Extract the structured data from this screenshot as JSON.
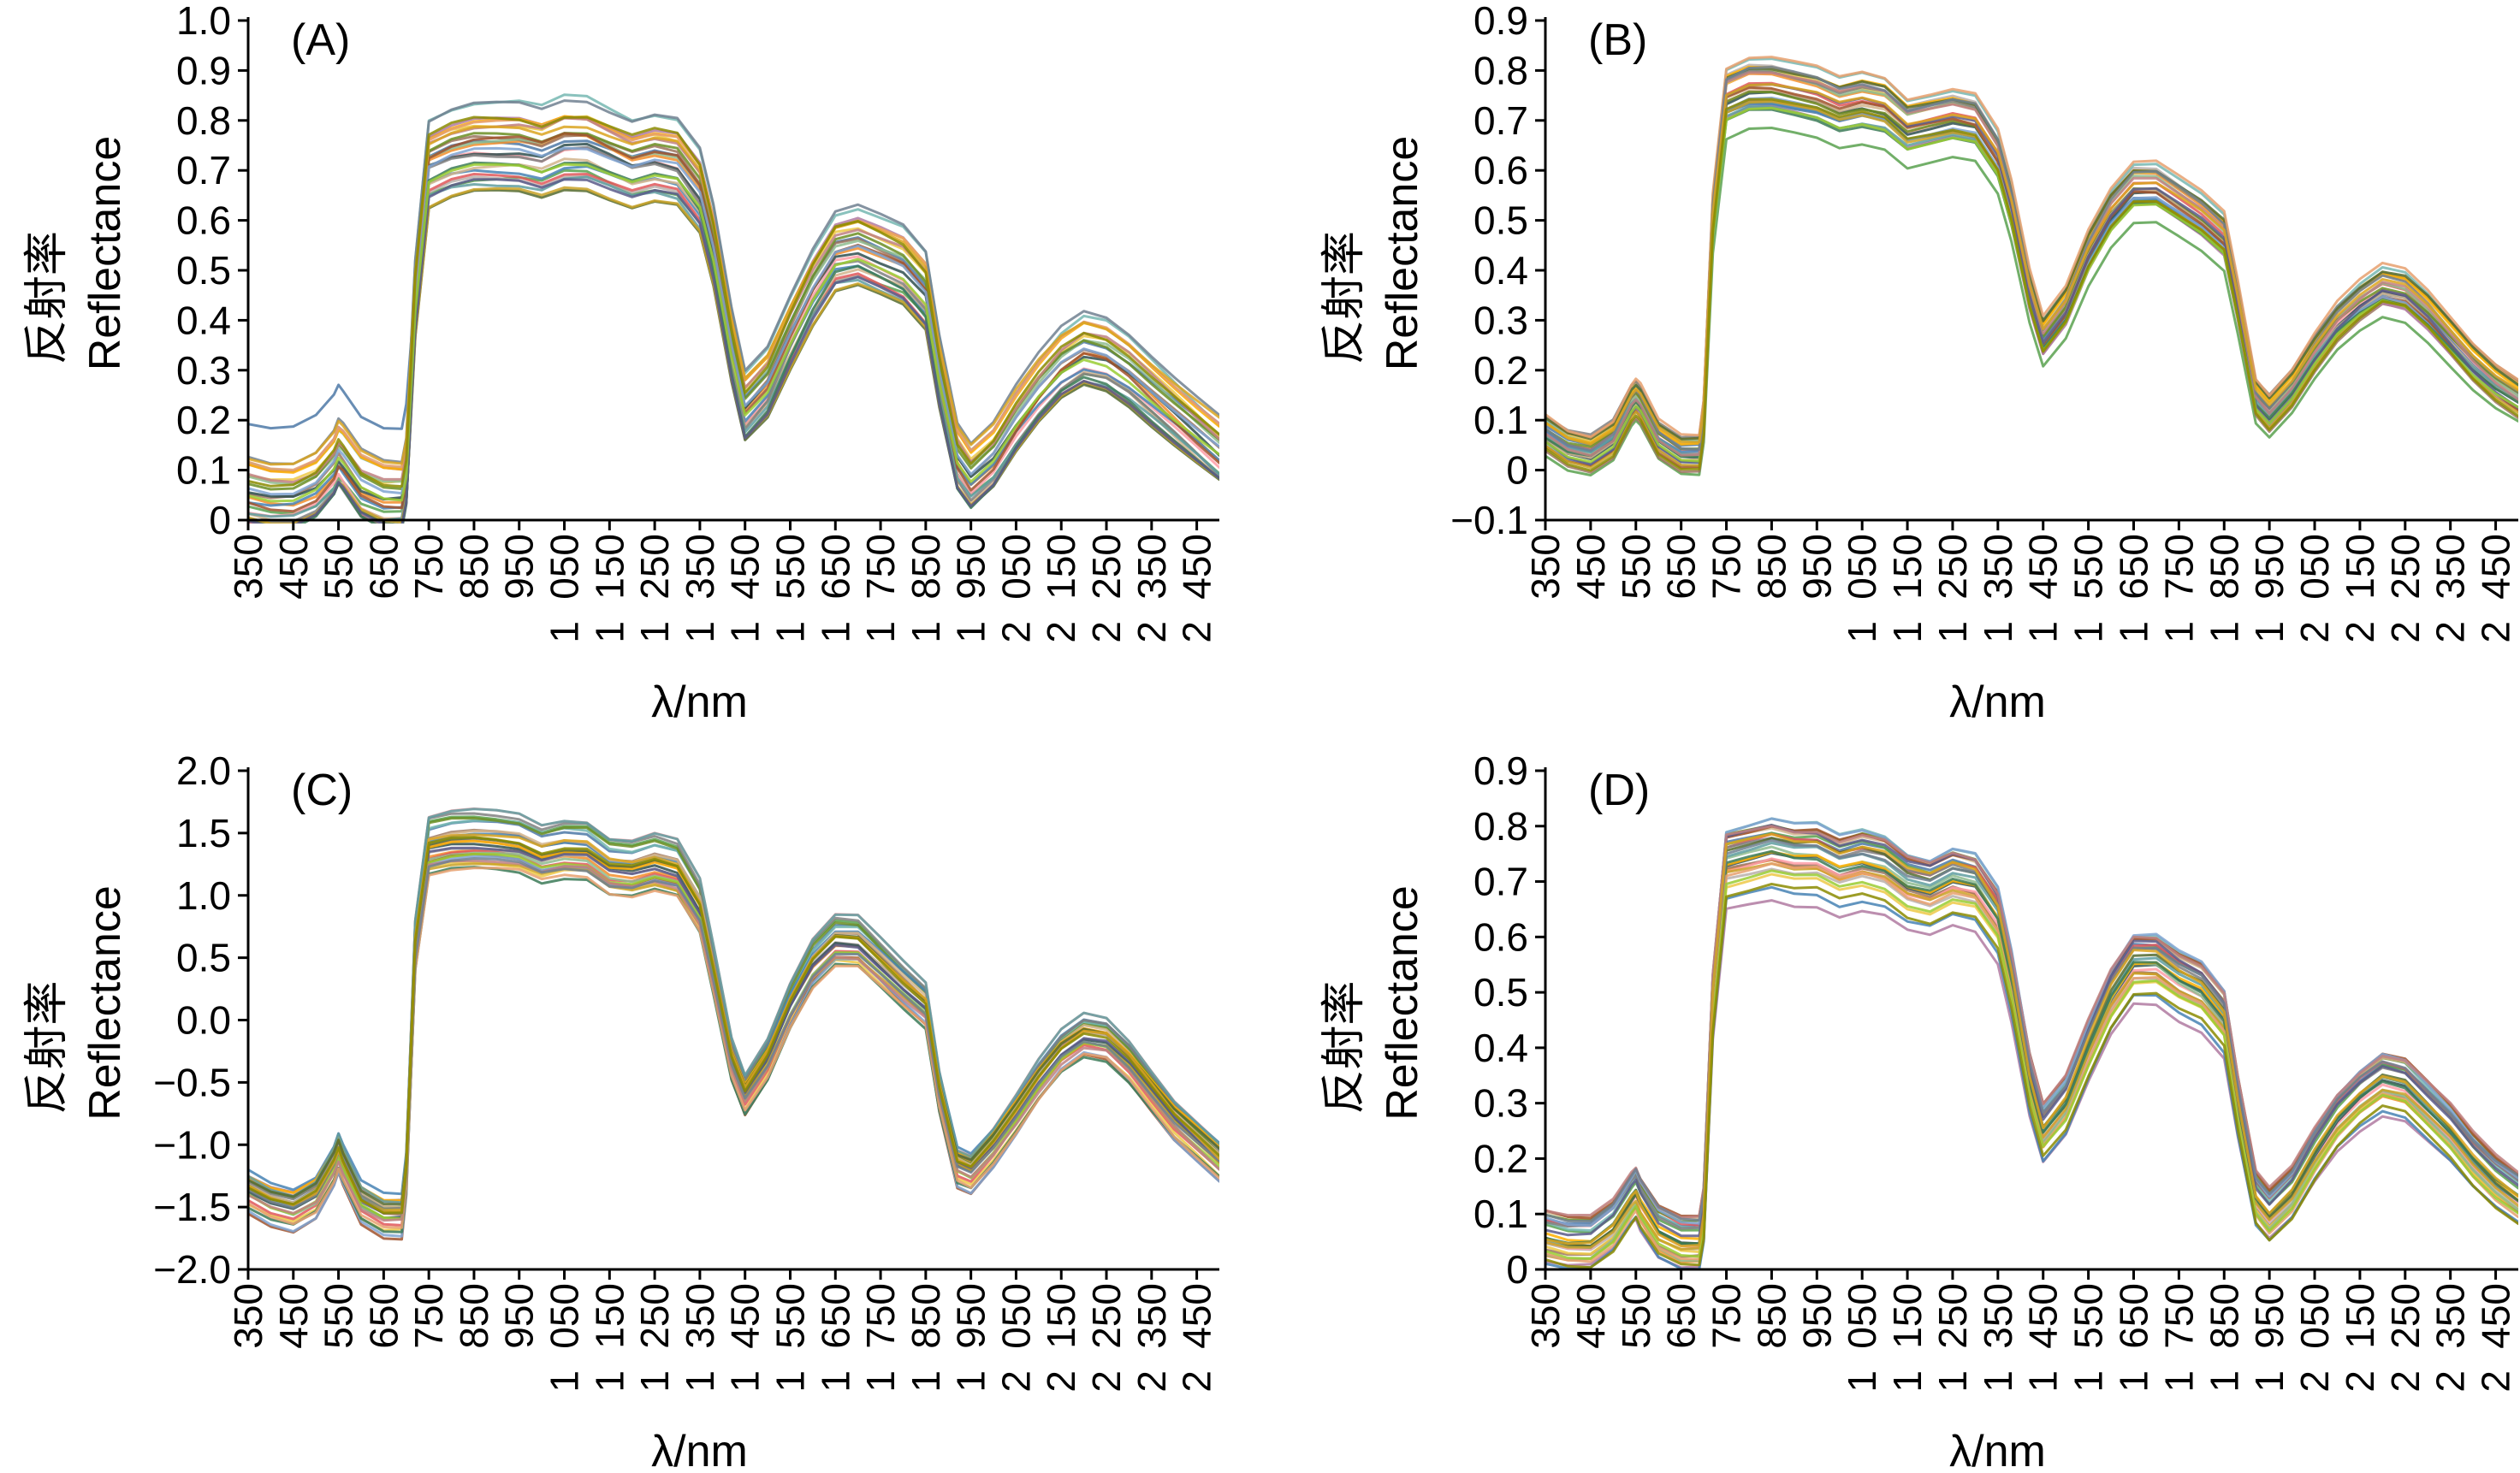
{
  "figure": {
    "ylabel_cn": "反射率",
    "ylabel_en": "Reflectance",
    "xlabel": "λ/nm"
  },
  "chart_data": [
    {
      "type": "line",
      "panel_label": "(A)",
      "xlabel": "λ/nm",
      "ylabel": "反射率 Reflectance",
      "xlim": [
        350,
        2500
      ],
      "ylim": [
        0,
        1.0
      ],
      "y_ticks": [
        "0",
        "0.1",
        "0.2",
        "0.3",
        "0.4",
        "0.5",
        "0.6",
        "0.7",
        "0.8",
        "0.9",
        "1.0"
      ],
      "x_ticks_top": [
        "350",
        "450",
        "550",
        "650",
        "750",
        "850",
        "950",
        "050",
        "150",
        "250",
        "350",
        "450",
        "550",
        "650",
        "750",
        "850",
        "950",
        "050",
        "150",
        "250",
        "350",
        "450"
      ],
      "x_ticks_bottom": [
        "",
        "",
        "",
        "",
        "",
        "",
        "",
        "1",
        "1",
        "1",
        "1",
        "1",
        "1",
        "1",
        "1",
        "1",
        "1",
        "2",
        "2",
        "2",
        "2",
        "2"
      ],
      "x": [
        350,
        400,
        450,
        500,
        540,
        550,
        560,
        600,
        650,
        690,
        700,
        720,
        750,
        800,
        850,
        900,
        950,
        1000,
        1050,
        1100,
        1150,
        1200,
        1250,
        1300,
        1350,
        1380,
        1420,
        1450,
        1500,
        1550,
        1600,
        1650,
        1700,
        1750,
        1800,
        1850,
        1880,
        1920,
        1950,
        2000,
        2050,
        2100,
        2150,
        2200,
        2250,
        2300,
        2350,
        2400,
        2450,
        2500
      ],
      "mean": [
        0.06,
        0.05,
        0.05,
        0.07,
        0.11,
        0.13,
        0.12,
        0.07,
        0.05,
        0.05,
        0.1,
        0.45,
        0.72,
        0.74,
        0.75,
        0.75,
        0.75,
        0.74,
        0.76,
        0.76,
        0.74,
        0.72,
        0.73,
        0.72,
        0.66,
        0.55,
        0.35,
        0.23,
        0.28,
        0.38,
        0.47,
        0.54,
        0.55,
        0.53,
        0.51,
        0.46,
        0.3,
        0.13,
        0.09,
        0.13,
        0.2,
        0.26,
        0.31,
        0.34,
        0.33,
        0.3,
        0.26,
        0.22,
        0.18,
        0.14
      ],
      "spread": 0.07,
      "series_count": 30,
      "outlier": {
        "offset": 0.11,
        "from_x": 350,
        "to_x": 700
      }
    },
    {
      "type": "line",
      "panel_label": "(B)",
      "xlabel": "λ/nm",
      "ylabel": "反射率 Reflectance",
      "xlim": [
        350,
        2500
      ],
      "ylim": [
        -0.1,
        0.9
      ],
      "y_ticks": [
        "−0.1",
        "0",
        "0.1",
        "0.2",
        "0.3",
        "0.4",
        "0.5",
        "0.6",
        "0.7",
        "0.8",
        "0.9"
      ],
      "x_ticks_top": [
        "350",
        "450",
        "550",
        "650",
        "750",
        "850",
        "950",
        "050",
        "150",
        "250",
        "350",
        "450",
        "550",
        "650",
        "750",
        "850",
        "950",
        "050",
        "150",
        "250",
        "350",
        "450"
      ],
      "x_ticks_bottom": [
        "",
        "",
        "",
        "",
        "",
        "",
        "",
        "1",
        "1",
        "1",
        "1",
        "1",
        "1",
        "1",
        "1",
        "1",
        "1",
        "2",
        "2",
        "2",
        "2",
        "2"
      ],
      "x": [
        350,
        400,
        450,
        500,
        540,
        550,
        560,
        600,
        650,
        690,
        700,
        720,
        750,
        800,
        850,
        900,
        950,
        1000,
        1050,
        1100,
        1150,
        1200,
        1250,
        1300,
        1350,
        1380,
        1420,
        1450,
        1500,
        1550,
        1600,
        1650,
        1700,
        1750,
        1800,
        1850,
        1880,
        1920,
        1950,
        2000,
        2050,
        2100,
        2150,
        2200,
        2250,
        2300,
        2350,
        2400,
        2450,
        2500
      ],
      "mean": [
        0.07,
        0.04,
        0.03,
        0.06,
        0.13,
        0.14,
        0.13,
        0.06,
        0.03,
        0.03,
        0.1,
        0.5,
        0.74,
        0.76,
        0.76,
        0.75,
        0.74,
        0.72,
        0.73,
        0.72,
        0.68,
        0.69,
        0.7,
        0.69,
        0.62,
        0.52,
        0.35,
        0.26,
        0.32,
        0.43,
        0.51,
        0.56,
        0.56,
        0.53,
        0.5,
        0.46,
        0.33,
        0.14,
        0.11,
        0.16,
        0.23,
        0.29,
        0.33,
        0.36,
        0.35,
        0.31,
        0.26,
        0.21,
        0.17,
        0.14
      ],
      "spread": 0.04,
      "series_count": 30
    },
    {
      "type": "line",
      "panel_label": "(C)",
      "xlabel": "λ/nm",
      "ylabel": "反射率 Reflectance",
      "xlim": [
        350,
        2500
      ],
      "ylim": [
        -2.0,
        2.0
      ],
      "y_ticks": [
        "−2.0",
        "−1.5",
        "−1.0",
        "−0.5",
        "0.0",
        "0.5",
        "1.0",
        "1.5",
        "2.0"
      ],
      "x_ticks_top": [
        "350",
        "450",
        "550",
        "650",
        "750",
        "850",
        "950",
        "050",
        "150",
        "250",
        "350",
        "450",
        "550",
        "650",
        "750",
        "850",
        "950",
        "050",
        "150",
        "250",
        "350",
        "450"
      ],
      "x_ticks_bottom": [
        "",
        "",
        "",
        "",
        "",
        "",
        "",
        "1",
        "1",
        "1",
        "1",
        "1",
        "1",
        "1",
        "1",
        "1",
        "1",
        "2",
        "2",
        "2",
        "2",
        "2"
      ],
      "x": [
        350,
        400,
        450,
        500,
        540,
        550,
        560,
        600,
        650,
        690,
        700,
        720,
        750,
        800,
        850,
        900,
        950,
        1000,
        1050,
        1100,
        1150,
        1200,
        1250,
        1300,
        1350,
        1380,
        1420,
        1450,
        1500,
        1550,
        1600,
        1650,
        1700,
        1750,
        1800,
        1850,
        1880,
        1920,
        1950,
        2000,
        2050,
        2100,
        2150,
        2200,
        2250,
        2300,
        2350,
        2400,
        2450,
        2500
      ],
      "mean": [
        -1.35,
        -1.45,
        -1.5,
        -1.4,
        -1.15,
        -1.05,
        -1.15,
        -1.45,
        -1.55,
        -1.55,
        -1.2,
        0.6,
        1.38,
        1.42,
        1.43,
        1.42,
        1.4,
        1.32,
        1.36,
        1.35,
        1.22,
        1.2,
        1.25,
        1.2,
        0.9,
        0.4,
        -0.3,
        -0.58,
        -0.3,
        0.12,
        0.45,
        0.63,
        0.62,
        0.45,
        0.28,
        0.12,
        -0.55,
        -1.15,
        -1.2,
        -1.0,
        -0.75,
        -0.48,
        -0.25,
        -0.12,
        -0.15,
        -0.32,
        -0.55,
        -0.78,
        -0.95,
        -1.12
      ],
      "spread": 0.18,
      "series_count": 30
    },
    {
      "type": "line",
      "panel_label": "(D)",
      "xlabel": "λ/nm",
      "ylabel": "反射率 Reflectance",
      "xlim": [
        350,
        2500
      ],
      "ylim": [
        0,
        0.9
      ],
      "y_ticks": [
        "0",
        "0.1",
        "0.2",
        "0.3",
        "0.4",
        "0.5",
        "0.6",
        "0.7",
        "0.8",
        "0.9"
      ],
      "x_ticks_top": [
        "350",
        "450",
        "550",
        "650",
        "750",
        "850",
        "950",
        "050",
        "150",
        "250",
        "350",
        "450",
        "550",
        "650",
        "750",
        "850",
        "950",
        "050",
        "150",
        "250",
        "350",
        "450"
      ],
      "x_ticks_bottom": [
        "",
        "",
        "",
        "",
        "",
        "",
        "",
        "1",
        "1",
        "1",
        "1",
        "1",
        "1",
        "1",
        "1",
        "1",
        "1",
        "2",
        "2",
        "2",
        "2",
        "2"
      ],
      "x": [
        350,
        400,
        450,
        500,
        540,
        550,
        560,
        600,
        650,
        690,
        700,
        720,
        750,
        800,
        850,
        900,
        950,
        1000,
        1050,
        1100,
        1150,
        1200,
        1250,
        1300,
        1350,
        1380,
        1420,
        1450,
        1500,
        1550,
        1600,
        1650,
        1700,
        1750,
        1800,
        1850,
        1880,
        1920,
        1950,
        2000,
        2050,
        2100,
        2150,
        2200,
        2250,
        2300,
        2350,
        2400,
        2450,
        2500
      ],
      "mean": [
        0.06,
        0.05,
        0.05,
        0.08,
        0.13,
        0.14,
        0.12,
        0.07,
        0.05,
        0.05,
        0.1,
        0.48,
        0.73,
        0.74,
        0.75,
        0.74,
        0.74,
        0.72,
        0.73,
        0.72,
        0.69,
        0.68,
        0.7,
        0.69,
        0.63,
        0.52,
        0.34,
        0.25,
        0.3,
        0.4,
        0.49,
        0.55,
        0.55,
        0.52,
        0.5,
        0.45,
        0.3,
        0.13,
        0.1,
        0.14,
        0.21,
        0.27,
        0.31,
        0.34,
        0.33,
        0.29,
        0.25,
        0.2,
        0.16,
        0.13
      ],
      "spread": 0.045,
      "series_count": 30
    }
  ],
  "palette": [
    "#4e79a7",
    "#f28e2b",
    "#59a14f",
    "#9c755f",
    "#bab0ac",
    "#edc948",
    "#76b7b2",
    "#e15759",
    "#b07aa1",
    "#ff9da7",
    "#2f4f4f",
    "#8fbc8f",
    "#6b8e23",
    "#4682b4",
    "#d2b48c",
    "#808080",
    "#ffb000",
    "#5f9ea0",
    "#a0522d",
    "#556b2f",
    "#7fa3d1",
    "#c9a227",
    "#3b7a57",
    "#e6a06e",
    "#5a5a8a",
    "#9acd32",
    "#c08081",
    "#708090",
    "#daa520",
    "#8b8b00"
  ]
}
